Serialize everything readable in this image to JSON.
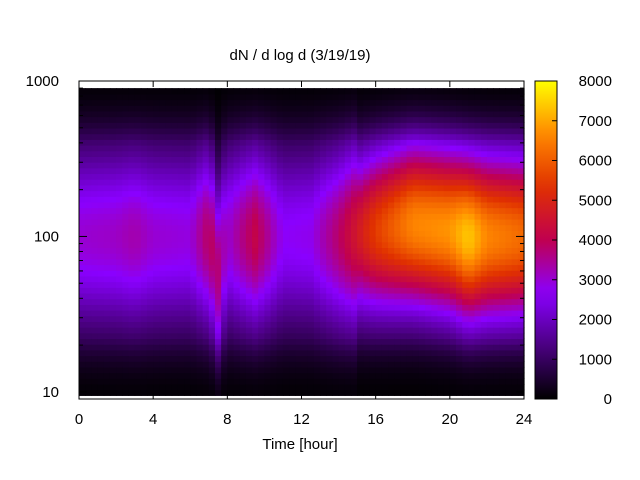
{
  "chart_data": {
    "type": "heatmap",
    "title": "dN / d log d (3/19/19)",
    "xlabel": "Time [hour]",
    "ylabel": "",
    "x_ticks": [
      0,
      4,
      8,
      12,
      16,
      20,
      24
    ],
    "x_tick_labels": [
      "0",
      "4",
      "8",
      "12",
      "16",
      "20",
      "24"
    ],
    "xlim": [
      0,
      24
    ],
    "y_scale": "log",
    "y_ticks": [
      10,
      100,
      1000
    ],
    "y_tick_labels": [
      "10",
      "100",
      "1000"
    ],
    "ylim": [
      9,
      1000
    ],
    "data_y_range": [
      9.5,
      900
    ],
    "colorbar": {
      "range": [
        0,
        8000
      ],
      "ticks": [
        0,
        1000,
        2000,
        3000,
        4000,
        5000,
        6000,
        7000,
        8000
      ],
      "tick_labels": [
        "0",
        "1000",
        "2000",
        "3000",
        "4000",
        "5000",
        "6000",
        "7000",
        "8000"
      ],
      "colormap": "gnuplot (black-purple-red-orange-yellow)",
      "colors": [
        "#000000",
        "#4a0080",
        "#8a00ff",
        "#c00050",
        "#e03000",
        "#ff8800",
        "#ffff00"
      ]
    },
    "grid": false,
    "series": [
      {
        "x": [
          0,
          2,
          3,
          4,
          6,
          7,
          7.5,
          8,
          9.5,
          11,
          12.5,
          14,
          16,
          18,
          20,
          21,
          22,
          24
        ],
        "peak_diameter": [
          100,
          100,
          100,
          100,
          100,
          100,
          60,
          100,
          100,
          100,
          100,
          100,
          110,
          120,
          110,
          100,
          100,
          100
        ],
        "peak_value": [
          3000,
          3100,
          3300,
          3000,
          2900,
          3900,
          3700,
          3000,
          4100,
          2700,
          2800,
          3800,
          5500,
          6600,
          6800,
          7400,
          6600,
          6200
        ]
      }
    ]
  }
}
